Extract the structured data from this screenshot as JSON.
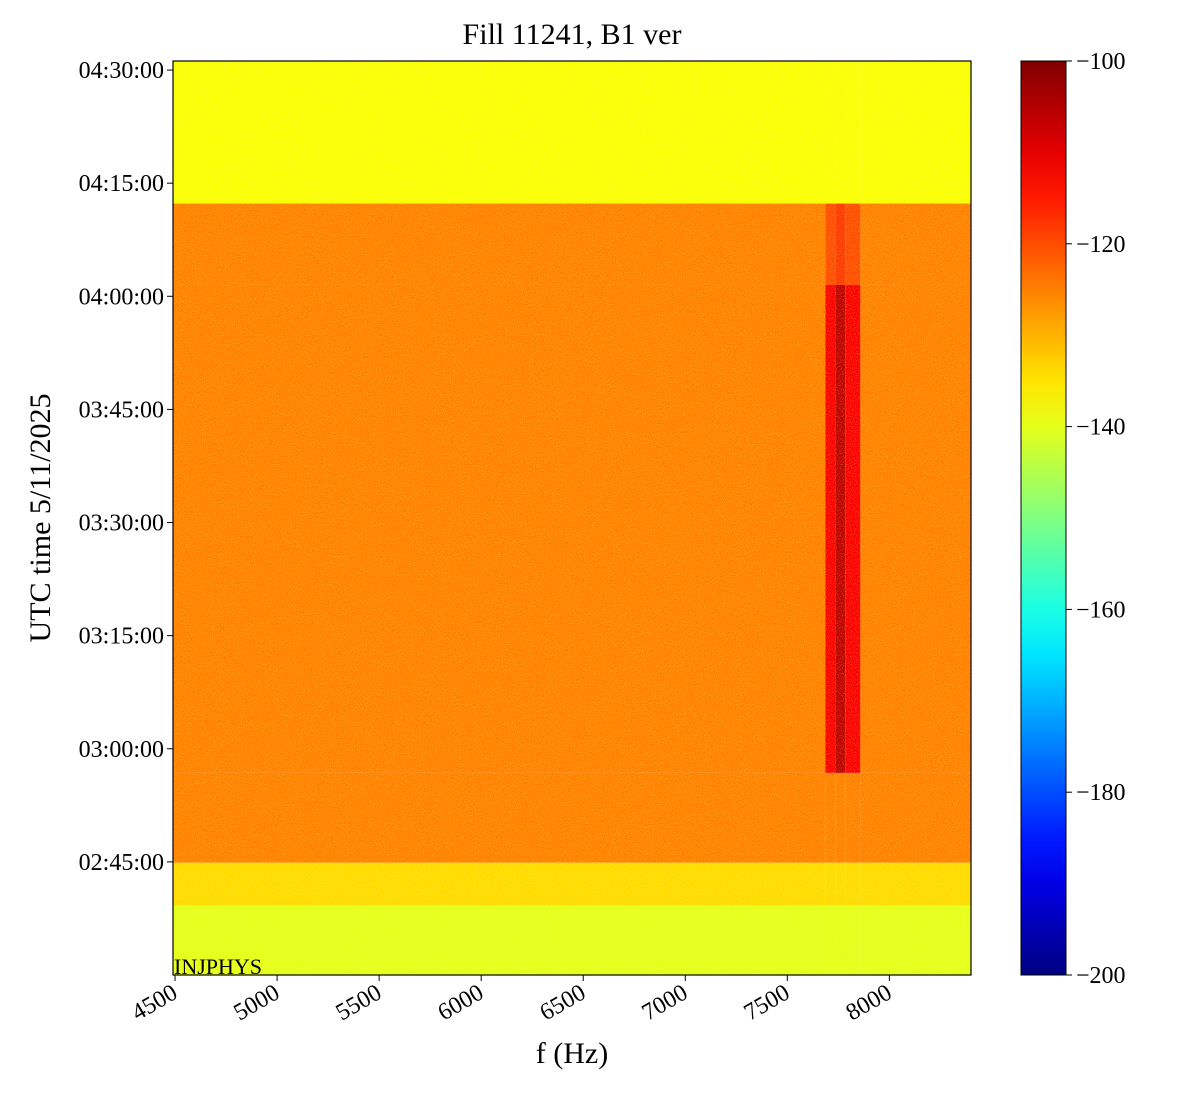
{
  "chart_data": {
    "type": "heatmap",
    "title": "Fill 11241, B1 ver",
    "xlabel": "f (Hz)",
    "ylabel": "UTC time 5/11/2025",
    "annotation": "INJPHYS",
    "colormap": "jet",
    "x_edges": [
      4490,
      7686,
      7735,
      7784,
      7858,
      8400
    ],
    "y_edges": [
      150,
      159.2,
      164.9,
      176.8,
      241.5,
      252.3,
      271.2
    ],
    "z": [
      [
        -140,
        -140,
        -140,
        -140,
        -140
      ],
      [
        -134,
        -134,
        -134,
        -134,
        -134
      ],
      [
        -125,
        -125,
        -125,
        -125,
        -125
      ],
      [
        -125,
        -112,
        -106,
        -112,
        -125
      ],
      [
        -125,
        -120,
        -118,
        -120,
        -125
      ],
      [
        -138,
        -138,
        -138,
        -138,
        -138
      ]
    ],
    "xlim": [
      4490,
      8400
    ],
    "xticks": [
      4500,
      5000,
      5500,
      6000,
      6500,
      7000,
      7500,
      8000
    ],
    "ylim": [
      150,
      271.2
    ],
    "yticks": [
      {
        "value": 165,
        "label": "02:45:00"
      },
      {
        "value": 180,
        "label": "03:00:00"
      },
      {
        "value": 195,
        "label": "03:15:00"
      },
      {
        "value": 210,
        "label": "03:30:00"
      },
      {
        "value": 225,
        "label": "03:45:00"
      },
      {
        "value": 240,
        "label": "04:00:00"
      },
      {
        "value": 255,
        "label": "04:15:00"
      },
      {
        "value": 270,
        "label": "04:30:00"
      }
    ],
    "clim": [
      -200,
      -100
    ],
    "cticks": [
      {
        "value": -100,
        "label": "−100"
      },
      {
        "value": -120,
        "label": "−120"
      },
      {
        "value": -140,
        "label": "−140"
      },
      {
        "value": -160,
        "label": "−160"
      },
      {
        "value": -180,
        "label": "−180"
      },
      {
        "value": -200,
        "label": "−200"
      }
    ]
  }
}
